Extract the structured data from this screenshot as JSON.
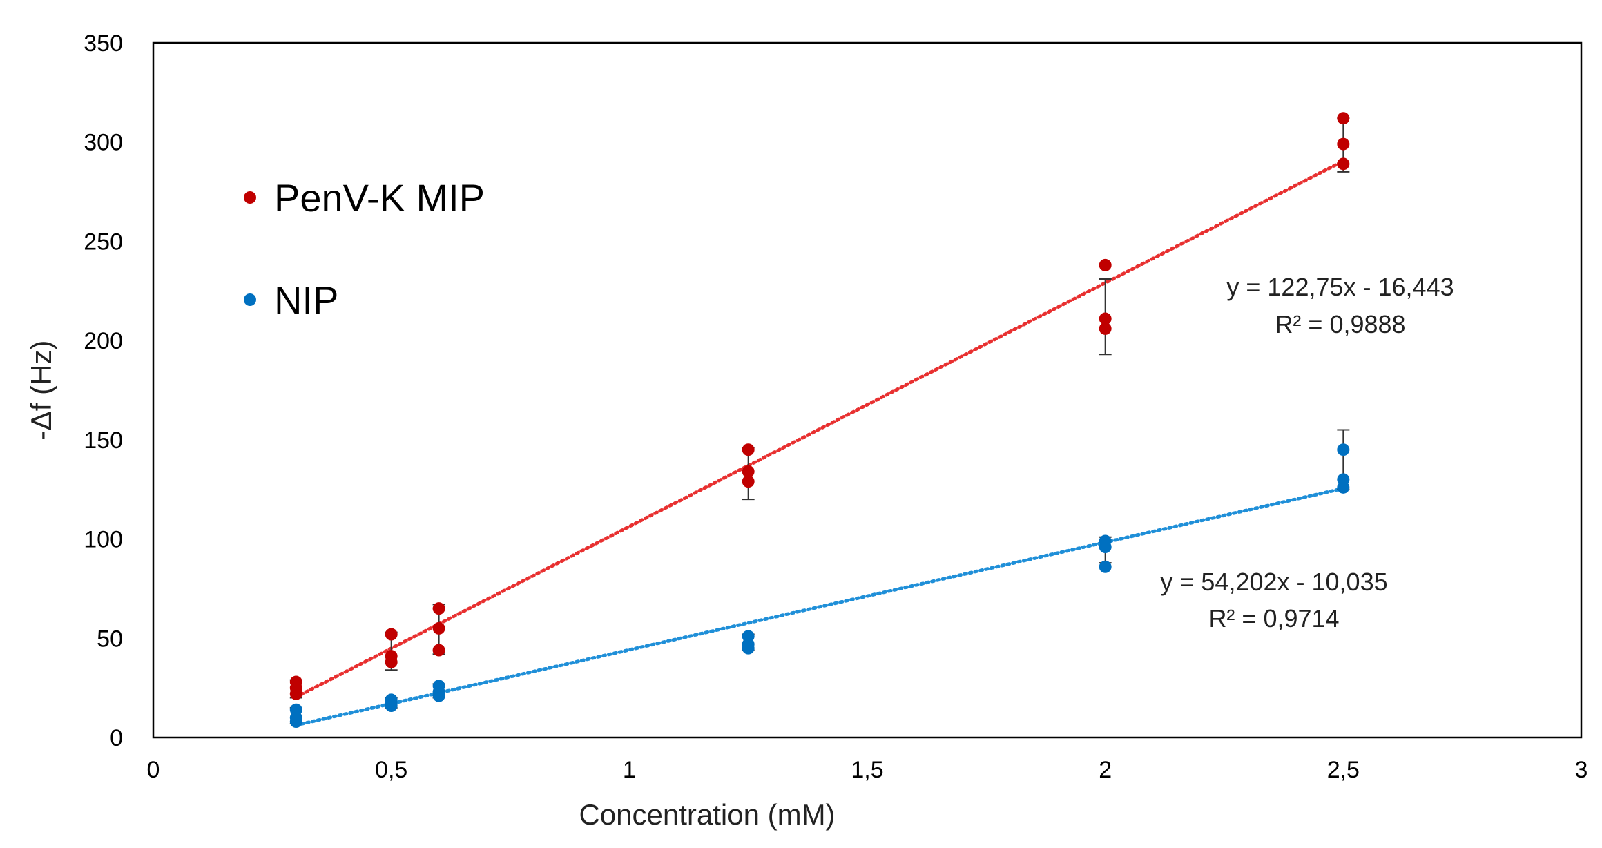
{
  "chart_data": {
    "type": "scatter",
    "title": "",
    "xlabel": "Concentration (mM)",
    "ylabel": "-Δf (Hz)",
    "xlim": [
      0,
      3
    ],
    "ylim": [
      0,
      350
    ],
    "x_ticks": [
      0,
      0.5,
      1,
      1.5,
      2,
      2.5,
      3
    ],
    "x_tick_labels": [
      "0",
      "0,5",
      "1",
      "1,5",
      "2",
      "2,5",
      "3"
    ],
    "y_ticks": [
      0,
      50,
      100,
      150,
      200,
      250,
      300,
      350
    ],
    "y_tick_labels": [
      "0",
      "50",
      "100",
      "150",
      "200",
      "250",
      "300",
      "350"
    ],
    "grid": false,
    "legend_position": "upper-left",
    "series": [
      {
        "name": "PenV-K MIP",
        "color": "#c00000",
        "trendline_color": "#e83030",
        "points": [
          [
            0.3,
            28
          ],
          [
            0.3,
            25
          ],
          [
            0.3,
            22
          ],
          [
            0.5,
            52
          ],
          [
            0.5,
            41
          ],
          [
            0.5,
            38
          ],
          [
            0.6,
            65
          ],
          [
            0.6,
            55
          ],
          [
            0.6,
            44
          ],
          [
            1.25,
            145
          ],
          [
            1.25,
            134
          ],
          [
            1.25,
            129
          ],
          [
            2.0,
            238
          ],
          [
            2.0,
            211
          ],
          [
            2.0,
            206
          ],
          [
            2.5,
            312
          ],
          [
            2.5,
            299
          ],
          [
            2.5,
            289
          ]
        ],
        "error_bars": [
          {
            "x": 0.3,
            "low": 20,
            "high": 29
          },
          {
            "x": 0.5,
            "low": 34,
            "high": 53
          },
          {
            "x": 0.6,
            "low": 42,
            "high": 67
          },
          {
            "x": 1.25,
            "low": 120,
            "high": 146
          },
          {
            "x": 2.0,
            "low": 193,
            "high": 231
          },
          {
            "x": 2.5,
            "low": 285,
            "high": 312
          }
        ],
        "trendline": {
          "slope": 122.75,
          "intercept": -16.443,
          "x_range": [
            0.3,
            2.5
          ]
        },
        "equation": "y = 122,75x - 16,443",
        "r_squared": "R² = 0,9888"
      },
      {
        "name": "NIP",
        "color": "#0070c0",
        "trendline_color": "#1f8fd8",
        "points": [
          [
            0.3,
            14
          ],
          [
            0.3,
            10
          ],
          [
            0.3,
            8
          ],
          [
            0.5,
            19
          ],
          [
            0.5,
            17
          ],
          [
            0.5,
            16
          ],
          [
            0.6,
            26
          ],
          [
            0.6,
            23
          ],
          [
            0.6,
            21
          ],
          [
            1.25,
            51
          ],
          [
            1.25,
            47
          ],
          [
            1.25,
            45
          ],
          [
            2.0,
            99
          ],
          [
            2.0,
            96
          ],
          [
            2.0,
            86
          ],
          [
            2.5,
            145
          ],
          [
            2.5,
            130
          ],
          [
            2.5,
            126
          ]
        ],
        "error_bars": [
          {
            "x": 0.3,
            "low": 7,
            "high": 15
          },
          {
            "x": 0.5,
            "low": 15,
            "high": 20
          },
          {
            "x": 0.6,
            "low": 20,
            "high": 27
          },
          {
            "x": 1.25,
            "low": 44,
            "high": 52
          },
          {
            "x": 2.0,
            "low": 88,
            "high": 101
          },
          {
            "x": 2.5,
            "low": 125,
            "high": 155
          }
        ],
        "trendline": {
          "slope": 54.202,
          "intercept": -10.035,
          "x_range": [
            0.3,
            2.5
          ]
        },
        "equation": "y = 54,202x - 10,035",
        "r_squared": "R² = 0,9714"
      }
    ]
  }
}
